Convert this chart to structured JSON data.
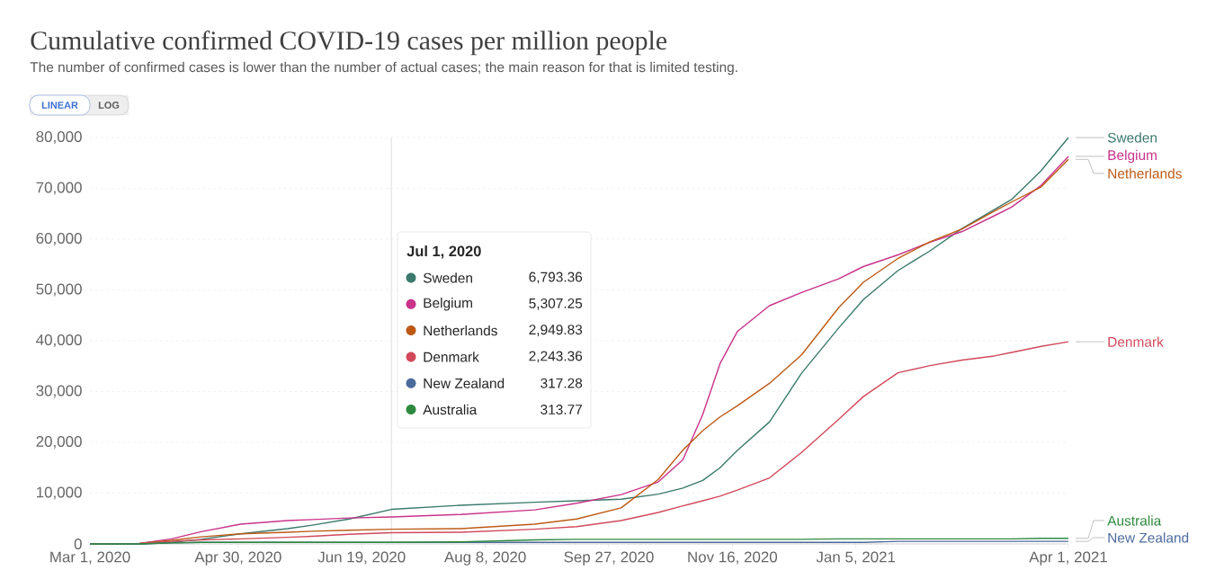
{
  "chart_data": {
    "type": "line",
    "title": "Cumulative confirmed COVID-19 cases per million people",
    "subtitle": "The number of confirmed cases is lower than the number of actual cases; the main reason for that is limited testing.",
    "xlim": [
      "2020-03-01",
      "2021-04-01"
    ],
    "xticks": [
      {
        "value": "2020-03-01",
        "label": "Mar 1, 2020"
      },
      {
        "value": "2020-04-30",
        "label": "Apr 30, 2020"
      },
      {
        "value": "2020-06-19",
        "label": "Jun 19, 2020"
      },
      {
        "value": "2020-08-08",
        "label": "Aug 8, 2020"
      },
      {
        "value": "2020-09-27",
        "label": "Sep 27, 2020"
      },
      {
        "value": "2020-11-16",
        "label": "Nov 16, 2020"
      },
      {
        "value": "2021-01-05",
        "label": "Jan 5, 2021"
      },
      {
        "value": "2021-04-01",
        "label": "Apr 1, 2021"
      }
    ],
    "ylim": [
      0,
      80000
    ],
    "yticks": [
      0,
      {
        "value": 10000,
        "label": "10,000"
      },
      {
        "value": 20000,
        "label": "20,000"
      },
      {
        "value": 30000,
        "label": "30,000"
      },
      {
        "value": 40000,
        "label": "40,000"
      },
      {
        "value": 50000,
        "label": "50,000"
      },
      {
        "value": 60000,
        "label": "60,000"
      },
      {
        "value": 70000,
        "label": "70,000"
      },
      {
        "value": 80000,
        "label": "80,000"
      }
    ],
    "grid": "y",
    "x": [
      "2020-03-01",
      "2020-03-11",
      "2020-03-21",
      "2020-04-03",
      "2020-04-15",
      "2020-05-01",
      "2020-05-20",
      "2020-05-30",
      "2020-06-14",
      "2020-07-01",
      "2020-07-29",
      "2020-08-28",
      "2020-09-14",
      "2020-10-02",
      "2020-10-17",
      "2020-10-27",
      "2020-11-04",
      "2020-11-11",
      "2020-11-18",
      "2020-12-01",
      "2020-12-14",
      "2020-12-29",
      "2021-01-08",
      "2021-01-22",
      "2021-02-04",
      "2021-02-17",
      "2021-03-02",
      "2021-03-09",
      "2021-03-21",
      "2021-04-01"
    ],
    "series": [
      {
        "name": "Sweden",
        "color": "#3a7a6c",
        "values": [
          0,
          0,
          0,
          300,
          900,
          2000,
          3000,
          3700,
          4900,
          6800,
          7600,
          8200,
          8500,
          8800,
          9800,
          11000,
          12500,
          15000,
          18400,
          24000,
          33600,
          42500,
          48100,
          53800,
          57700,
          62100,
          65800,
          67800,
          73500,
          80000
        ]
      },
      {
        "name": "Belgium",
        "color": "#c9338a",
        "values": [
          0,
          0,
          100,
          1000,
          2400,
          3900,
          4600,
          4800,
          5100,
          5300,
          5800,
          6700,
          8000,
          9700,
          12200,
          16600,
          25500,
          35500,
          41800,
          46900,
          49500,
          52200,
          54600,
          56900,
          59400,
          61500,
          64600,
          66300,
          70600,
          76300
        ]
      },
      {
        "name": "Netherlands",
        "color": "#be5915",
        "values": [
          0,
          0,
          100,
          700,
          1400,
          2000,
          2300,
          2500,
          2700,
          2900,
          3000,
          3900,
          4900,
          7100,
          12700,
          18500,
          22300,
          25000,
          27200,
          31600,
          37200,
          46500,
          51500,
          56200,
          59500,
          62000,
          65500,
          67300,
          70300,
          75700
        ]
      },
      {
        "name": "Denmark",
        "color": "#d1495b",
        "values": [
          0,
          0,
          100,
          500,
          800,
          1000,
          1300,
          1500,
          1900,
          2200,
          2300,
          2900,
          3400,
          4600,
          6200,
          7500,
          8500,
          9400,
          10600,
          13000,
          18000,
          24500,
          29000,
          33700,
          35100,
          36200,
          37000,
          37700,
          38900,
          39800
        ]
      },
      {
        "name": "New Zealand",
        "color": "#4c6a9c",
        "values": [
          0,
          0,
          0,
          200,
          300,
          300,
          300,
          300,
          300,
          300,
          300,
          300,
          300,
          300,
          300,
          300,
          300,
          300,
          300,
          300,
          300,
          300,
          300,
          500,
          500,
          500,
          500,
          500,
          500,
          500
        ]
      },
      {
        "name": "Australia",
        "color": "#2d8a3e",
        "values": [
          0,
          0,
          0,
          200,
          300,
          300,
          300,
          300,
          300,
          300,
          400,
          800,
          900,
          900,
          900,
          900,
          900,
          900,
          900,
          900,
          900,
          1000,
          1000,
          1000,
          1000,
          1000,
          1000,
          1000,
          1100,
          1100
        ]
      }
    ],
    "legend": "bottom left",
    "ref_lines": [
      {
        "axis": "x",
        "value": "2020-07-01",
        "color": "#dddddd"
      }
    ],
    "annotations": [
      "LINEAR",
      "LOG",
      "Jul 1, 2020",
      "6,793.36",
      "5,307.25",
      "2,949.83",
      "2,243.36",
      "317.28",
      "313.77"
    ]
  }
}
